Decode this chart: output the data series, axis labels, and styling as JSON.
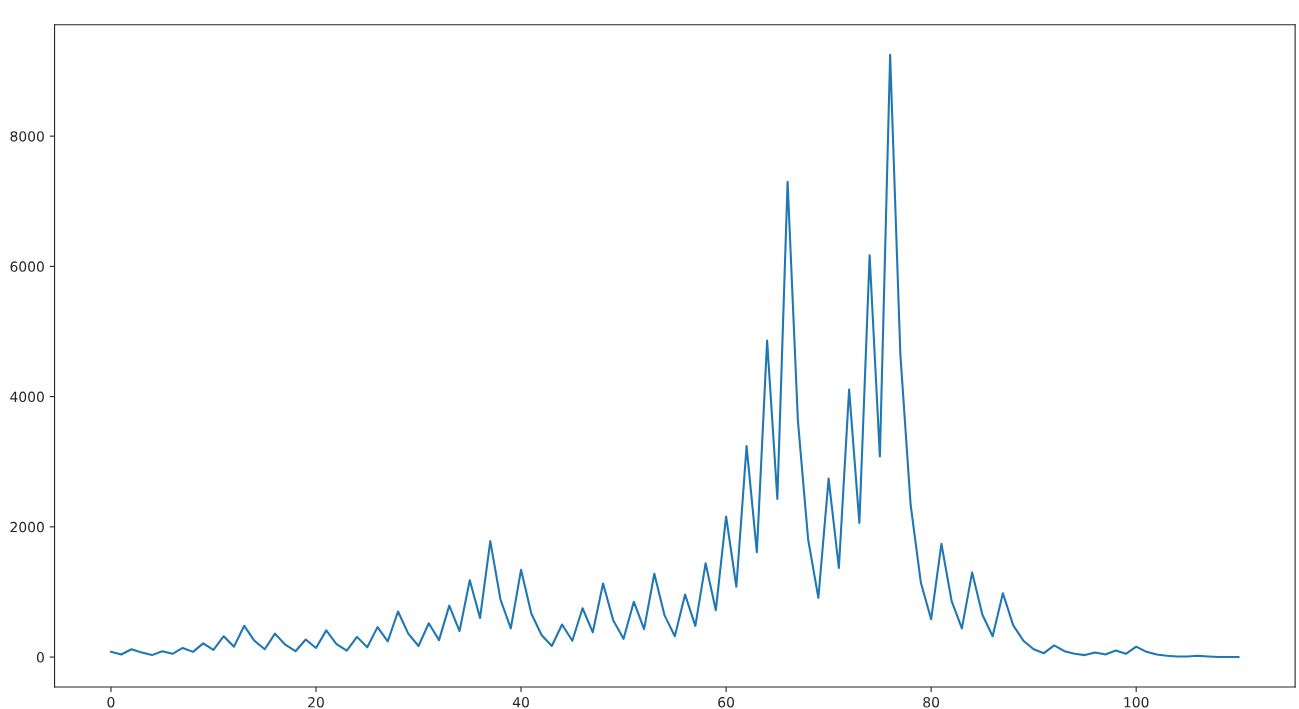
{
  "chart_data": {
    "type": "line",
    "x": [
      0,
      1,
      2,
      3,
      4,
      5,
      6,
      7,
      8,
      9,
      10,
      11,
      12,
      13,
      14,
      15,
      16,
      17,
      18,
      19,
      20,
      21,
      22,
      23,
      24,
      25,
      26,
      27,
      28,
      29,
      30,
      31,
      32,
      33,
      34,
      35,
      36,
      37,
      38,
      39,
      40,
      41,
      42,
      43,
      44,
      45,
      46,
      47,
      48,
      49,
      50,
      51,
      52,
      53,
      54,
      55,
      56,
      57,
      58,
      59,
      60,
      61,
      62,
      63,
      64,
      65,
      66,
      67,
      68,
      69,
      70,
      71,
      72,
      73,
      74,
      75,
      76,
      77,
      78,
      79,
      80,
      81,
      82,
      83,
      84,
      85,
      86,
      87,
      88,
      89,
      90,
      91,
      92,
      93,
      94,
      95,
      96,
      97,
      98,
      99,
      100,
      101,
      102,
      103,
      104,
      105,
      106,
      107,
      108,
      109,
      110
    ],
    "series": [
      {
        "color": "#1f77b4",
        "values": [
          80,
          40,
          120,
          70,
          30,
          90,
          50,
          140,
          80,
          210,
          110,
          320,
          160,
          480,
          250,
          120,
          360,
          190,
          90,
          270,
          140,
          410,
          200,
          100,
          310,
          150,
          460,
          240,
          700,
          360,
          170,
          520,
          260,
          790,
          400,
          1180,
          600,
          1780,
          880,
          440,
          1340,
          670,
          340,
          170,
          500,
          250,
          750,
          380,
          1130,
          560,
          280,
          850,
          430,
          1280,
          640,
          320,
          960,
          480,
          1440,
          720,
          2160,
          1080,
          3240,
          1610,
          4860,
          2430,
          7300,
          3640,
          1810,
          910,
          2740,
          1370,
          4110,
          2060,
          6170,
          3080,
          9250,
          4640,
          2340,
          1140,
          580,
          1740,
          860,
          440,
          1300,
          650,
          320,
          980,
          490,
          250,
          120,
          60,
          180,
          90,
          50,
          30,
          70,
          40,
          100,
          50,
          160,
          80,
          40,
          20,
          10,
          10,
          20,
          10,
          0,
          0,
          0
        ]
      }
    ],
    "xlim": [
      -5.5,
      115.5
    ],
    "ylim": [
      -460,
      9710
    ],
    "xticks": [
      0,
      20,
      40,
      60,
      80,
      100
    ],
    "yticks": [
      0,
      2000,
      4000,
      6000,
      8000
    ],
    "grid": false
  }
}
